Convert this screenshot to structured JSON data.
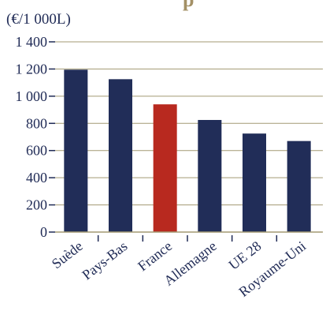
{
  "chart_data": {
    "type": "bar",
    "title": "p",
    "unit_label": "(€/1 000L)",
    "categories": [
      "Suède",
      "Pays-Bas",
      "France",
      "Allemagne",
      "UE 28",
      "Royaume-Uni"
    ],
    "values": [
      1195,
      1125,
      940,
      825,
      725,
      670
    ],
    "ylim": [
      0,
      1400
    ],
    "yticks": [
      0,
      200,
      400,
      600,
      800,
      1000,
      1200,
      1400
    ],
    "ytick_labels": [
      "0",
      "200",
      "400",
      "600",
      "800",
      "1 000",
      "1 200",
      "1 400"
    ],
    "grid": "horizontal",
    "colors": {
      "bar": "#212d58",
      "highlight": "#b8291f",
      "grid": "#a39a73",
      "text": "#1f2a55",
      "title": "#a39065"
    },
    "highlight_category": "France"
  }
}
